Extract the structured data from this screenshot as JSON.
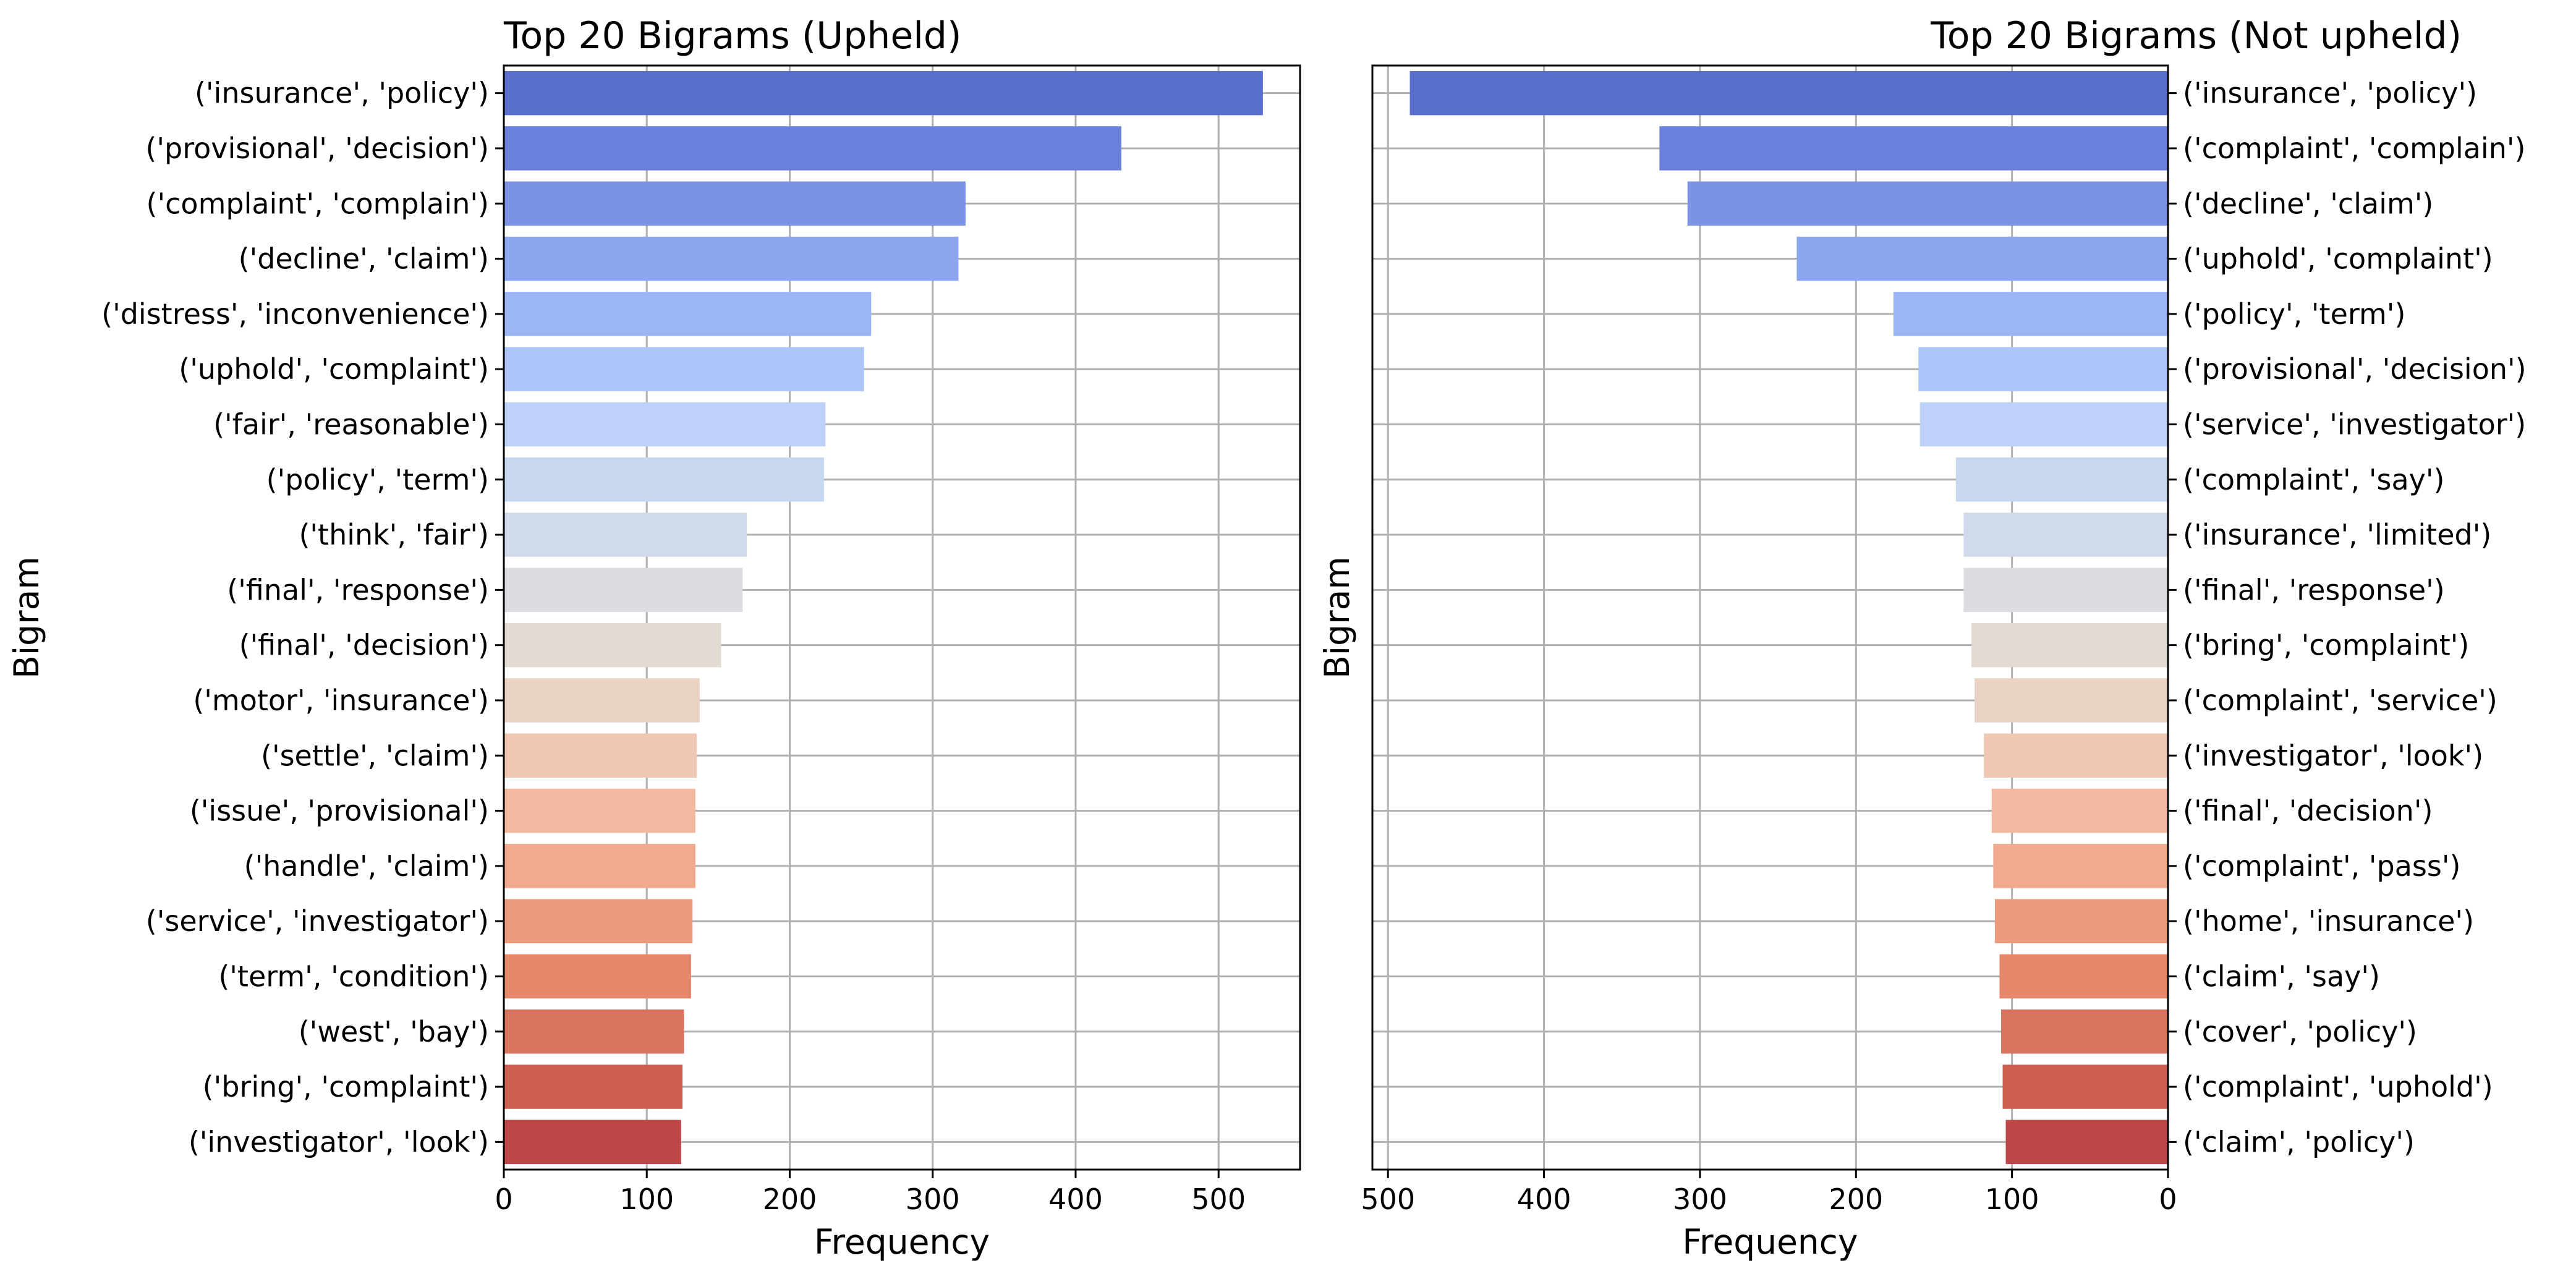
{
  "chart_data": [
    {
      "type": "bar",
      "orientation": "horizontal",
      "title": "Top 20 Bigrams (Upheld)",
      "xlabel": "Frequency",
      "ylabel": "Bigram",
      "xlim": [
        0,
        557
      ],
      "x_inverted": false,
      "y_tick_side": "left",
      "grid": true,
      "xticks": [
        "0",
        "100",
        "200",
        "300",
        "400",
        "500"
      ],
      "xtick_values": [
        0,
        100,
        200,
        300,
        400,
        500
      ],
      "categories": [
        "('insurance', 'policy')",
        "('provisional', 'decision')",
        "('complaint', 'complain')",
        "('decline', 'claim')",
        "('distress', 'inconvenience')",
        "('uphold', 'complaint')",
        "('fair', 'reasonable')",
        "('policy', 'term')",
        "('think', 'fair')",
        "('final', 'response')",
        "('final', 'decision')",
        "('motor', 'insurance')",
        "('settle', 'claim')",
        "('issue', 'provisional')",
        "('handle', 'claim')",
        "('service', 'investigator')",
        "('term', 'condition')",
        "('west', 'bay')",
        "('bring', 'complaint')",
        "('investigator', 'look')"
      ],
      "values": [
        531,
        432,
        323,
        318,
        257,
        252,
        225,
        224,
        170,
        167,
        152,
        137,
        135,
        134,
        134,
        132,
        131,
        126,
        125,
        124
      ],
      "colors": [
        "#5a6fcb",
        "#6a80db",
        "#7b93e5",
        "#8ca6ef",
        "#9cb6f5",
        "#aec5fa",
        "#bed1f9",
        "#c8d7f0",
        "#d1dae9",
        "#dadcdf",
        "#e2dbd4",
        "#ead2c4",
        "#f0c7b3",
        "#f2b9a0",
        "#f1aa8e",
        "#ec9a7c",
        "#e5876b",
        "#da735d",
        "#cd5f52",
        "#be4646"
      ]
    },
    {
      "type": "bar",
      "orientation": "horizontal",
      "title": "Top 20 Bigrams (Not upheld)",
      "xlabel": "Frequency",
      "ylabel": "Bigram",
      "xlim": [
        0,
        510
      ],
      "x_inverted": true,
      "y_tick_side": "right",
      "grid": true,
      "xticks": [
        "500",
        "400",
        "300",
        "200",
        "100",
        "0"
      ],
      "xtick_values": [
        500,
        400,
        300,
        200,
        100,
        0
      ],
      "categories": [
        "('insurance', 'policy')",
        "('complaint', 'complain')",
        "('decline', 'claim')",
        "('uphold', 'complaint')",
        "('policy', 'term')",
        "('provisional', 'decision')",
        "('service', 'investigator')",
        "('complaint', 'say')",
        "('insurance', 'limited')",
        "('final', 'response')",
        "('bring', 'complaint')",
        "('complaint', 'service')",
        "('investigator', 'look')",
        "('final', 'decision')",
        "('complaint', 'pass')",
        "('home', 'insurance')",
        "('claim', 'say')",
        "('cover', 'policy')",
        "('complaint', 'uphold')",
        "('claim', 'policy')"
      ],
      "values": [
        486,
        326,
        308,
        238,
        176,
        160,
        159,
        136,
        131,
        131,
        126,
        124,
        118,
        113,
        112,
        111,
        108,
        107,
        106,
        104
      ],
      "colors": [
        "#5a6fcb",
        "#6a80db",
        "#7b93e5",
        "#8ca6ef",
        "#9cb6f5",
        "#aec5fa",
        "#bed1f9",
        "#c8d7f0",
        "#d1dae9",
        "#dadcdf",
        "#e2dbd4",
        "#ead2c4",
        "#f0c7b3",
        "#f2b9a0",
        "#f1aa8e",
        "#ec9a7c",
        "#e5876b",
        "#da735d",
        "#cd5f52",
        "#be4646"
      ]
    }
  ]
}
